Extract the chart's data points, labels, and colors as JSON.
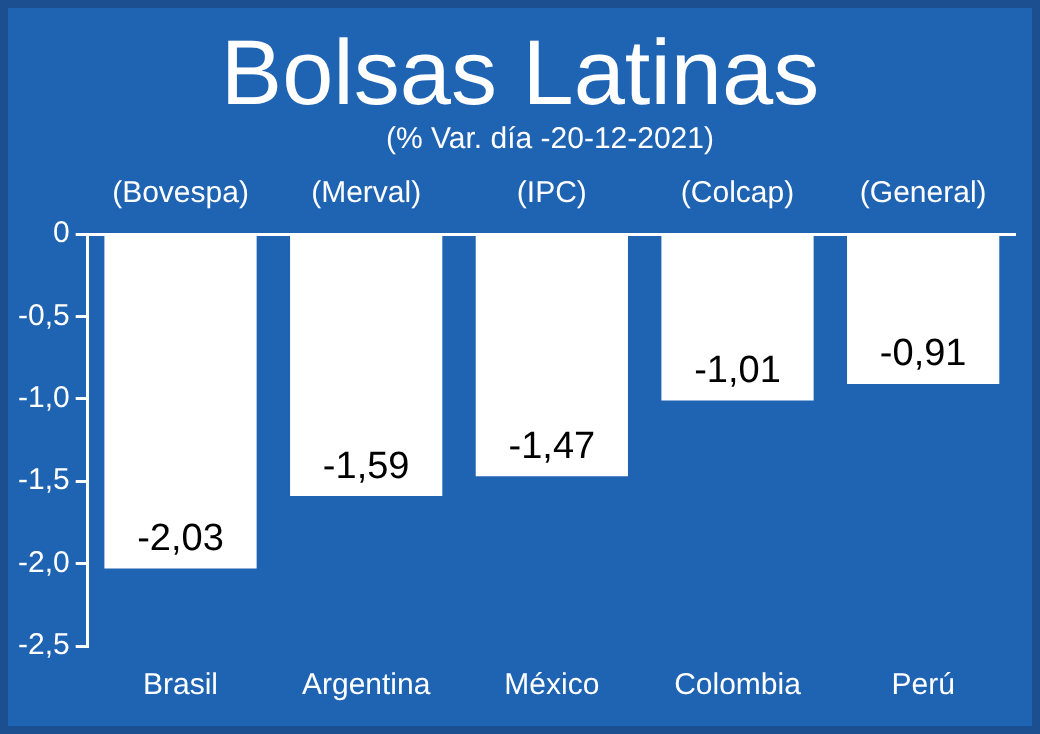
{
  "chart_data": {
    "type": "bar",
    "title": "Bolsas Latinas",
    "subtitle": "(% Var. día -20-12-2021)",
    "categories": [
      "Brasil",
      "Argentina",
      "México",
      "Colombia",
      "Perú"
    ],
    "values": [
      -2.03,
      -1.59,
      -1.47,
      -1.01,
      -0.91
    ],
    "value_labels": [
      "-2,03",
      "-1,59",
      "-1,47",
      "-1,01",
      "-0,91"
    ],
    "color": "#ffffff",
    "ylim": [
      -2.5,
      0
    ],
    "yticks": [
      {
        "value": -2.5,
        "label": "-2,5"
      },
      {
        "value": -2,
        "label": "-2,0"
      },
      {
        "value": -1.5,
        "label": "-1,5"
      },
      {
        "value": -1,
        "label": "-1,0"
      },
      {
        "value": -0.5,
        "label": "-0,5"
      },
      0
    ],
    "annotations": [
      "(Bovespa)",
      "(Merval)",
      "(IPC)",
      "(Colcap)",
      "(General)"
    ],
    "legend": false
  }
}
